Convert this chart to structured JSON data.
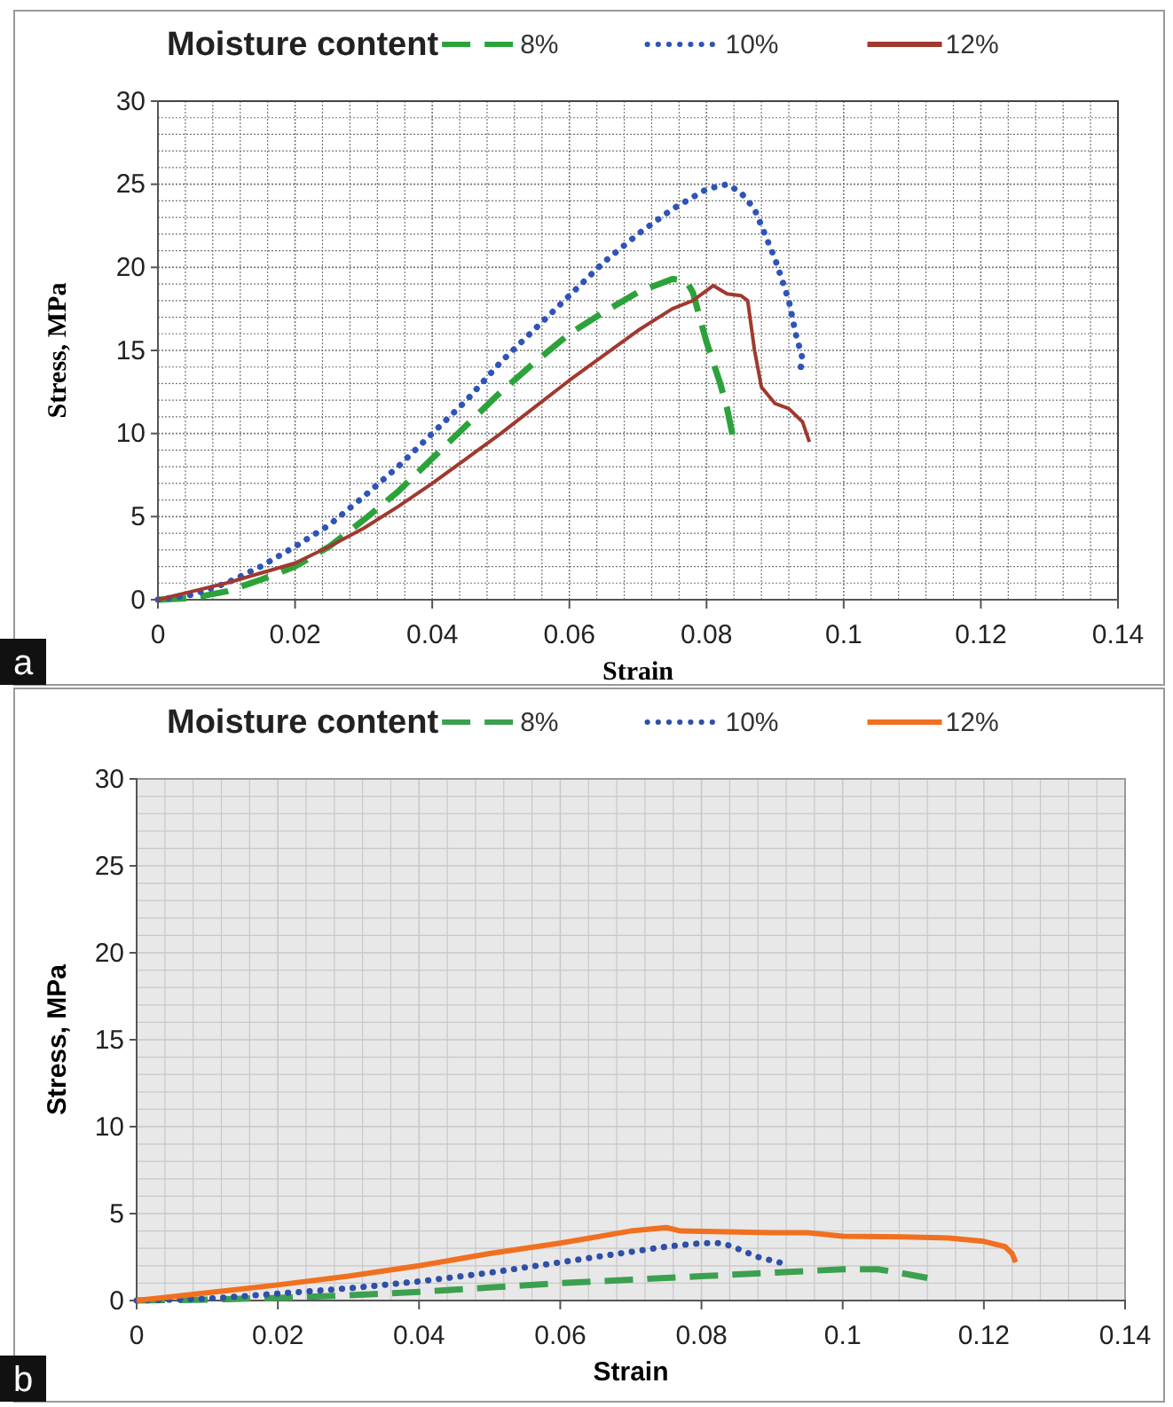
{
  "chart_data": [
    {
      "type": "line",
      "xlabel": "Strain",
      "ylabel": "Stress, MPa",
      "legend_title": "Moisture content",
      "legend": "top",
      "grid": true,
      "annotations": [
        "a"
      ],
      "xlim": [
        0,
        0.14
      ],
      "xticks": [
        0,
        0.02,
        0.04,
        0.06,
        0.08,
        0.1,
        0.12,
        0.14
      ],
      "ylim": [
        0,
        30
      ],
      "yticks": [
        0,
        5,
        10,
        15,
        20,
        25,
        30
      ],
      "series": [
        {
          "name": "8%",
          "color": "#2ca33a",
          "line_style": "dashed",
          "x": [
            0,
            0.005,
            0.01,
            0.015,
            0.02,
            0.025,
            0.03,
            0.035,
            0.04,
            0.045,
            0.05,
            0.055,
            0.06,
            0.065,
            0.07,
            0.075,
            0.077,
            0.078,
            0.08,
            0.082,
            0.083,
            0.084
          ],
          "values": [
            0,
            0.1,
            0.5,
            1.2,
            2,
            3.2,
            4.8,
            6.5,
            8.5,
            10.5,
            12.5,
            14.3,
            16,
            17.3,
            18.5,
            19.3,
            19.2,
            18.5,
            15.5,
            13,
            11.5,
            9.5
          ]
        },
        {
          "name": "10%",
          "color": "#2f54b8",
          "line_style": "dotted",
          "x": [
            0,
            0.005,
            0.01,
            0.015,
            0.02,
            0.025,
            0.03,
            0.035,
            0.04,
            0.045,
            0.05,
            0.055,
            0.06,
            0.065,
            0.07,
            0.075,
            0.08,
            0.083,
            0.085,
            0.087,
            0.09,
            0.092,
            0.093,
            0.094,
            0.0935
          ],
          "values": [
            0,
            0.3,
            1,
            2,
            3.2,
            4.5,
            6.2,
            8,
            10,
            12,
            14.3,
            16.3,
            18.3,
            20.3,
            22,
            23.5,
            24.7,
            25,
            24.5,
            23.5,
            20.5,
            18,
            16,
            14.5,
            13.5
          ]
        },
        {
          "name": "12%",
          "color": "#a0392f",
          "line_style": "solid",
          "x": [
            0,
            0.005,
            0.01,
            0.015,
            0.02,
            0.025,
            0.03,
            0.035,
            0.04,
            0.045,
            0.05,
            0.055,
            0.06,
            0.065,
            0.07,
            0.075,
            0.078,
            0.081,
            0.083,
            0.085,
            0.086,
            0.087,
            0.088,
            0.09,
            0.092,
            0.094,
            0.095
          ],
          "values": [
            0,
            0.5,
            1,
            1.6,
            2.2,
            3.2,
            4.3,
            5.6,
            7,
            8.5,
            10,
            11.6,
            13.2,
            14.7,
            16.2,
            17.5,
            18,
            18.9,
            18.4,
            18.3,
            18,
            15,
            12.8,
            11.8,
            11.5,
            10.7,
            9.5
          ]
        }
      ]
    },
    {
      "type": "line",
      "xlabel": "Strain",
      "ylabel": "Stress, MPa",
      "legend_title": "Moisture content",
      "legend": "top",
      "grid": true,
      "annotations": [
        "b"
      ],
      "xlim": [
        0,
        0.14
      ],
      "xticks": [
        0,
        0.02,
        0.04,
        0.06,
        0.08,
        0.1,
        0.12,
        0.14
      ],
      "ylim": [
        0,
        30
      ],
      "yticks": [
        0,
        5,
        10,
        15,
        20,
        25,
        30
      ],
      "series": [
        {
          "name": "8%",
          "color": "#3ca050",
          "line_style": "dashed",
          "x": [
            0,
            0.01,
            0.02,
            0.03,
            0.04,
            0.05,
            0.06,
            0.07,
            0.08,
            0.09,
            0.1,
            0.105,
            0.108,
            0.112
          ],
          "values": [
            0,
            0.05,
            0.15,
            0.3,
            0.5,
            0.75,
            1,
            1.2,
            1.4,
            1.6,
            1.8,
            1.8,
            1.6,
            1.3
          ]
        },
        {
          "name": "10%",
          "color": "#2f4fa8",
          "line_style": "dotted",
          "x": [
            0,
            0.01,
            0.02,
            0.03,
            0.04,
            0.05,
            0.06,
            0.07,
            0.075,
            0.08,
            0.083,
            0.085,
            0.088,
            0.092
          ],
          "values": [
            0,
            0.1,
            0.4,
            0.7,
            1.1,
            1.6,
            2.2,
            2.8,
            3.1,
            3.3,
            3.3,
            3,
            2.5,
            2.1
          ]
        },
        {
          "name": "12%",
          "color": "#f07020",
          "line_style": "solid",
          "x": [
            0,
            0.01,
            0.02,
            0.03,
            0.04,
            0.05,
            0.06,
            0.07,
            0.075,
            0.077,
            0.09,
            0.095,
            0.1,
            0.11,
            0.115,
            0.12,
            0.123,
            0.124,
            0.1245
          ],
          "values": [
            0,
            0.45,
            0.9,
            1.4,
            2,
            2.7,
            3.3,
            4,
            4.2,
            4,
            3.9,
            3.9,
            3.7,
            3.65,
            3.6,
            3.4,
            3.1,
            2.7,
            2.2
          ]
        }
      ]
    }
  ]
}
